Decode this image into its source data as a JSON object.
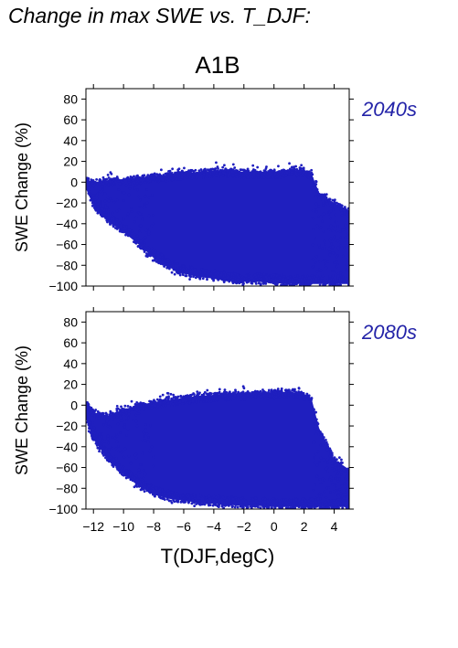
{
  "title": "Change in max SWE vs. T_DJF:",
  "chart_data": {
    "type": "scatter",
    "scenario": "A1B",
    "x_label": "T(DJF,degC)",
    "y_label": "SWE Change (%)",
    "point_color": "#1f1fbf",
    "x_range": [
      -12.5,
      5
    ],
    "y_range": [
      -100,
      90
    ],
    "x_ticks": [
      -12,
      -10,
      -8,
      -6,
      -4,
      -2,
      0,
      2,
      4
    ],
    "x_tick_labels": [
      "−12",
      "−10",
      "−8",
      "−6",
      "−4",
      "−2",
      "0",
      "2",
      "4"
    ],
    "y_ticks": [
      -100,
      -80,
      -60,
      -40,
      -20,
      0,
      20,
      40,
      60,
      80
    ],
    "y_tick_labels": [
      "−100",
      "−80",
      "−60",
      "−40",
      "−20",
      "0",
      "20",
      "40",
      "60",
      "80"
    ],
    "panels": [
      {
        "period": "2040s",
        "envelope": {
          "x": [
            -12.5,
            -12,
            -11,
            -10,
            -9,
            -8,
            -7,
            -6,
            -5,
            -4,
            -3,
            -2,
            -1,
            0,
            1,
            2,
            2.5,
            3,
            4,
            5
          ],
          "upper": [
            5,
            2,
            4,
            5,
            6,
            8,
            9,
            11,
            12,
            13,
            13,
            12,
            12,
            12,
            13,
            14,
            10,
            -8,
            -18,
            -25
          ],
          "lower": [
            -8,
            -25,
            -40,
            -50,
            -62,
            -75,
            -84,
            -90,
            -93,
            -95,
            -97,
            -98,
            -98,
            -99,
            -100,
            -100,
            -100,
            -100,
            -100,
            -100
          ]
        }
      },
      {
        "period": "2080s",
        "envelope": {
          "x": [
            -12.5,
            -12,
            -11,
            -10,
            -9,
            -8,
            -7,
            -6,
            -5,
            -4,
            -3,
            -2,
            -1,
            0,
            1,
            2,
            2.5,
            3,
            4,
            5
          ],
          "upper": [
            5,
            -5,
            -8,
            -2,
            2,
            5,
            7,
            9,
            11,
            12,
            13,
            13,
            14,
            14,
            15,
            13,
            8,
            -20,
            -50,
            -60
          ],
          "lower": [
            -15,
            -35,
            -55,
            -68,
            -80,
            -88,
            -92,
            -94,
            -96,
            -97,
            -98,
            -99,
            -99,
            -100,
            -100,
            -100,
            -100,
            -100,
            -100,
            -100
          ]
        }
      }
    ]
  }
}
